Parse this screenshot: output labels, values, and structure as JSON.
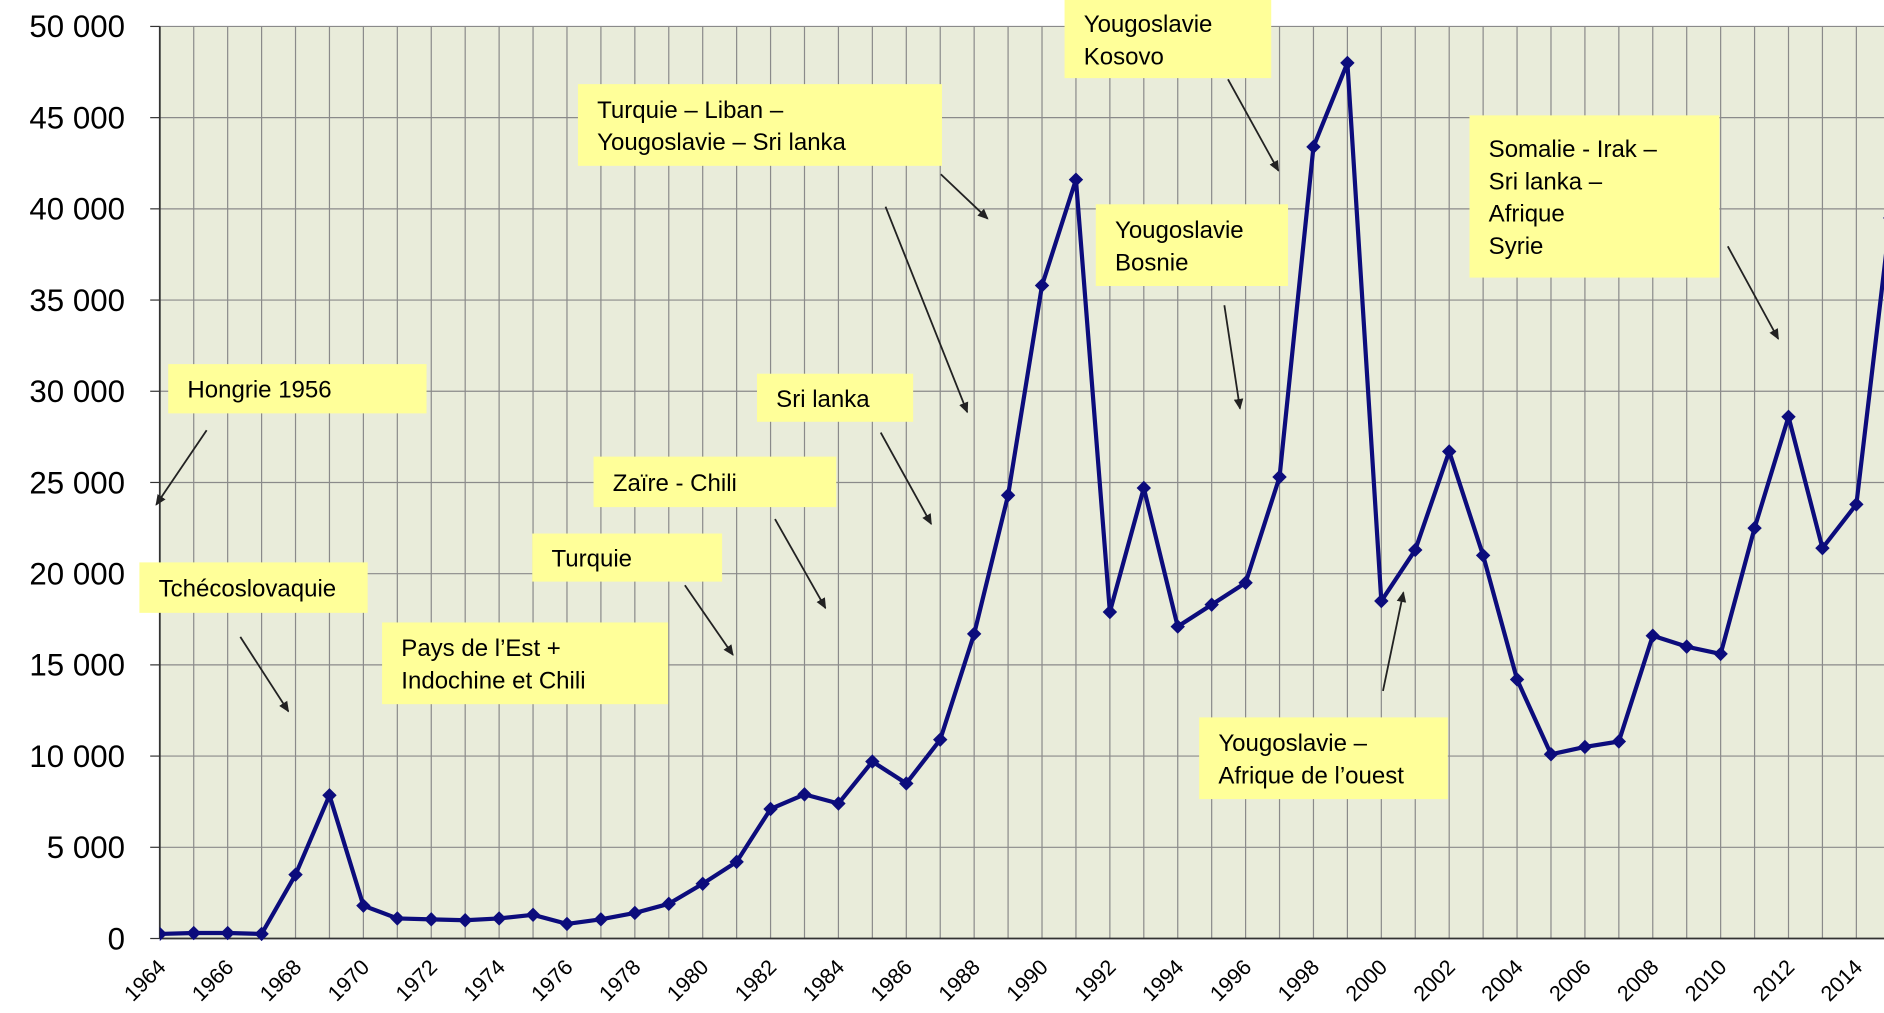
{
  "chart_data": {
    "type": "line",
    "categories": [
      "1964",
      null,
      "1966",
      null,
      "1968",
      null,
      "1970",
      null,
      "1972",
      null,
      "1974",
      null,
      "1976",
      null,
      "1978",
      null,
      "1980",
      null,
      "1982",
      null,
      "1984",
      null,
      "1986",
      null,
      "1988",
      null,
      "1990",
      null,
      "1992",
      null,
      "1994",
      null,
      "1996",
      null,
      "1998",
      null,
      "2000",
      null,
      "2002",
      null,
      "2004",
      null,
      "2006",
      null,
      "2008",
      null,
      "2010",
      null,
      "2012",
      null,
      "2014",
      null
    ],
    "series": [
      {
        "color": "#0c0c7c",
        "values": [
          250,
          300,
          300,
          250,
          3500,
          7850,
          1800,
          1100,
          1050,
          1000,
          1100,
          1300,
          800,
          1050,
          1400,
          1900,
          3000,
          4200,
          7100,
          7900,
          7400,
          9700,
          8500,
          10900,
          16700,
          24300,
          35800,
          41600,
          17900,
          24700,
          17100,
          18300,
          19500,
          25300,
          43400,
          48000,
          18500,
          21300,
          26700,
          21000,
          14200,
          10100,
          10500,
          10800,
          16600,
          16000,
          15600,
          22500,
          28600,
          21400,
          23800,
          39500
        ]
      }
    ],
    "ylim": [
      0,
      50000
    ],
    "yticks": [
      0,
      {
        "value": 5000,
        "label": "5 000"
      },
      {
        "value": 10000,
        "label": "10 000"
      },
      {
        "value": 15000,
        "label": "15 000"
      },
      {
        "value": 20000,
        "label": "20 000"
      },
      {
        "value": 25000,
        "label": "25 000"
      },
      {
        "value": 30000,
        "label": "30 000"
      },
      {
        "value": 35000,
        "label": "35 000"
      },
      {
        "value": 40000,
        "label": "40 000"
      },
      {
        "value": 45000,
        "label": "45 000"
      },
      {
        "value": 50000,
        "label": "50 000"
      }
    ],
    "grid": true,
    "annotations": [
      {
        "lines": [
          "Hongrie 1956"
        ]
      },
      {
        "lines": [
          "Tchécoslovaquie"
        ]
      },
      {
        "lines": [
          "Pays de l’Est +",
          "Indochine et Chili"
        ]
      },
      {
        "lines": [
          "Turquie"
        ]
      },
      {
        "lines": [
          "Zaïre - Chili"
        ]
      },
      {
        "lines": [
          "Sri lanka"
        ]
      },
      {
        "lines": [
          "Turquie – Liban –",
          "Yougoslavie – Sri lanka"
        ]
      },
      {
        "lines": [
          "Yougoslavie",
          "Kosovo"
        ]
      },
      {
        "lines": [
          "Yougoslavie",
          "Bosnie"
        ]
      },
      {
        "lines": [
          "Yougoslavie –",
          "Afrique de l’ouest"
        ]
      },
      {
        "lines": [
          "Somalie - Irak –",
          "Sri lanka –",
          "Afrique",
          "Syrie"
        ]
      }
    ]
  }
}
